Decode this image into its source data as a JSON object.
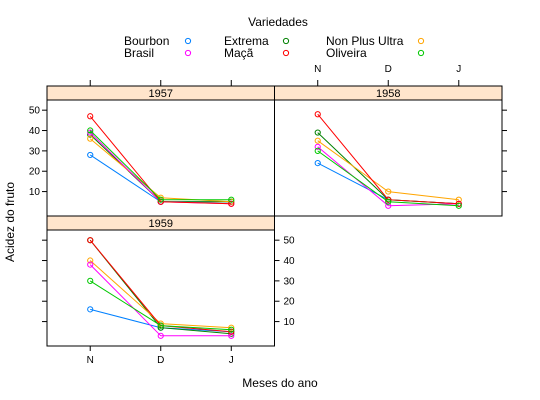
{
  "chart_data": {
    "type": "line",
    "legend": {
      "title": "Variedades",
      "placement": "top",
      "items": [
        {
          "name": "Bourbon",
          "color": "#0080ff"
        },
        {
          "name": "Extrema",
          "color": "#008000"
        },
        {
          "name": "Non Plus Ultra",
          "color": "#ffa500"
        },
        {
          "name": "Brasil",
          "color": "#ff00ff"
        },
        {
          "name": "Maçã",
          "color": "#ff0000"
        },
        {
          "name": "Oliveira",
          "color": "#00c800"
        }
      ]
    },
    "xlabel": "Meses do ano",
    "ylabel": "Acidez do fruto",
    "categories": [
      "N",
      "D",
      "J"
    ],
    "yticks": [
      10,
      20,
      30,
      40,
      50
    ],
    "ylim": [
      -2,
      55
    ],
    "grid": false,
    "panels": [
      {
        "title": "1957",
        "series": [
          {
            "name": "Bourbon",
            "values": [
              28,
              5,
              5
            ]
          },
          {
            "name": "Extrema",
            "values": [
              38,
              5,
              5
            ]
          },
          {
            "name": "Non Plus Ultra",
            "values": [
              36,
              7,
              5
            ]
          },
          {
            "name": "Brasil",
            "values": [
              39,
              5,
              4
            ]
          },
          {
            "name": "Maçã",
            "values": [
              47,
              5,
              4
            ]
          },
          {
            "name": "Oliveira",
            "values": [
              40,
              6,
              6
            ]
          }
        ]
      },
      {
        "title": "1958",
        "series": [
          {
            "name": "Bourbon",
            "values": [
              24,
              6,
              4
            ]
          },
          {
            "name": "Extrema",
            "values": [
              39,
              6,
              4
            ]
          },
          {
            "name": "Non Plus Ultra",
            "values": [
              35,
              10,
              6
            ]
          },
          {
            "name": "Brasil",
            "values": [
              32,
              3,
              4
            ]
          },
          {
            "name": "Maçã",
            "values": [
              48,
              6,
              4
            ]
          },
          {
            "name": "Oliveira",
            "values": [
              30,
              5,
              3
            ]
          }
        ]
      },
      {
        "title": "1959",
        "series": [
          {
            "name": "Bourbon",
            "values": [
              16,
              7,
              5
            ]
          },
          {
            "name": "Extrema",
            "values": [
              50,
              7,
              4
            ]
          },
          {
            "name": "Non Plus Ultra",
            "values": [
              40,
              9,
              7
            ]
          },
          {
            "name": "Brasil",
            "values": [
              38,
              3,
              3
            ]
          },
          {
            "name": "Maçã",
            "values": [
              50,
              8,
              5
            ]
          },
          {
            "name": "Oliveira",
            "values": [
              30,
              8,
              6
            ]
          }
        ]
      }
    ]
  }
}
